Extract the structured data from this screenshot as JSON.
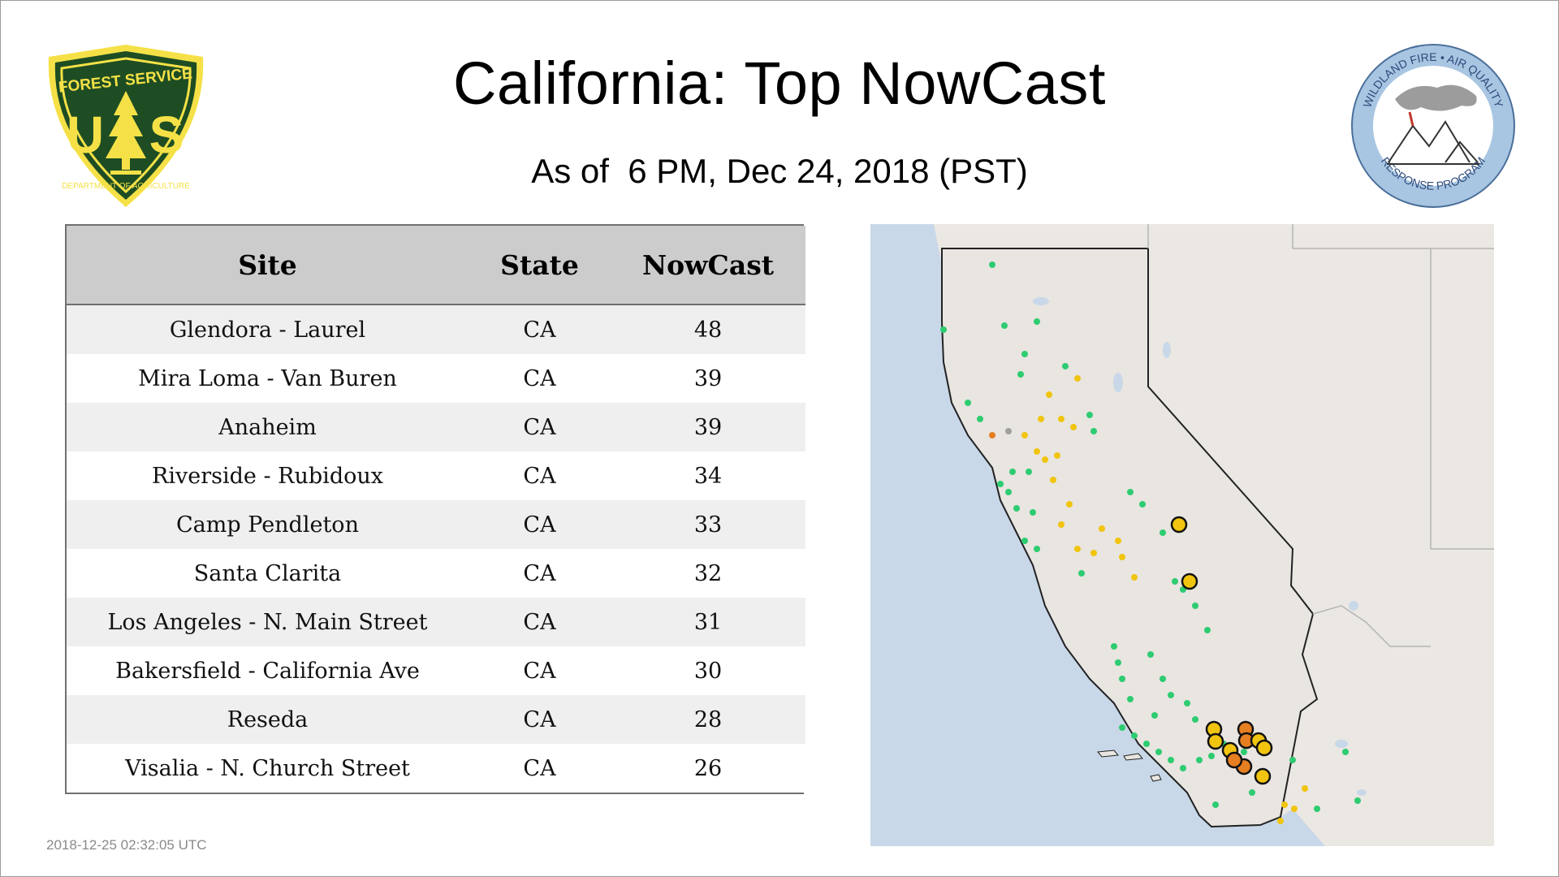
{
  "title": "California: Top NowCast",
  "subtitle": "As of  6 PM, Dec 24, 2018 (PST)",
  "logos": {
    "usfs": {
      "top": "FOREST SERVICE",
      "letters": "U S",
      "bottom": "DEPARTMENT OF AGRICULTURE",
      "colors": {
        "green": "#1e4d23",
        "gold": "#f5e147"
      }
    },
    "wfaq": {
      "top": "WILDLAND FIRE • AIR QUALITY",
      "bottom": "RESPONSE PROGRAM",
      "colors": {
        "ring": "#a8c6e2",
        "text": "#2a4a7a"
      }
    }
  },
  "table": {
    "headers": [
      "Site",
      "State",
      "NowCast"
    ],
    "rows": [
      {
        "site": "Glendora - Laurel",
        "state": "CA",
        "nowcast": "48"
      },
      {
        "site": "Mira Loma - Van Buren",
        "state": "CA",
        "nowcast": "39"
      },
      {
        "site": "Anaheim",
        "state": "CA",
        "nowcast": "39"
      },
      {
        "site": "Riverside - Rubidoux",
        "state": "CA",
        "nowcast": "34"
      },
      {
        "site": "Camp Pendleton",
        "state": "CA",
        "nowcast": "33"
      },
      {
        "site": "Santa Clarita",
        "state": "CA",
        "nowcast": "32"
      },
      {
        "site": "Los Angeles - N. Main Street",
        "state": "CA",
        "nowcast": "31"
      },
      {
        "site": "Bakersfield - California Ave",
        "state": "CA",
        "nowcast": "30"
      },
      {
        "site": "Reseda",
        "state": "CA",
        "nowcast": "28"
      },
      {
        "site": "Visalia - N. Church Street",
        "state": "CA",
        "nowcast": "26"
      }
    ]
  },
  "map": {
    "region": "California",
    "colors": {
      "ocean": "#c8d8e8",
      "land": "#ebe7e3",
      "border": "#222222",
      "state_line": "#b5b5b5",
      "good": "#2ecc71",
      "moderate": "#f1c40f",
      "usg": "#e67e22",
      "no_data": "#a0a0a0"
    }
  },
  "footer": {
    "timestamp": "2018-12-25 02:32:05 UTC"
  }
}
